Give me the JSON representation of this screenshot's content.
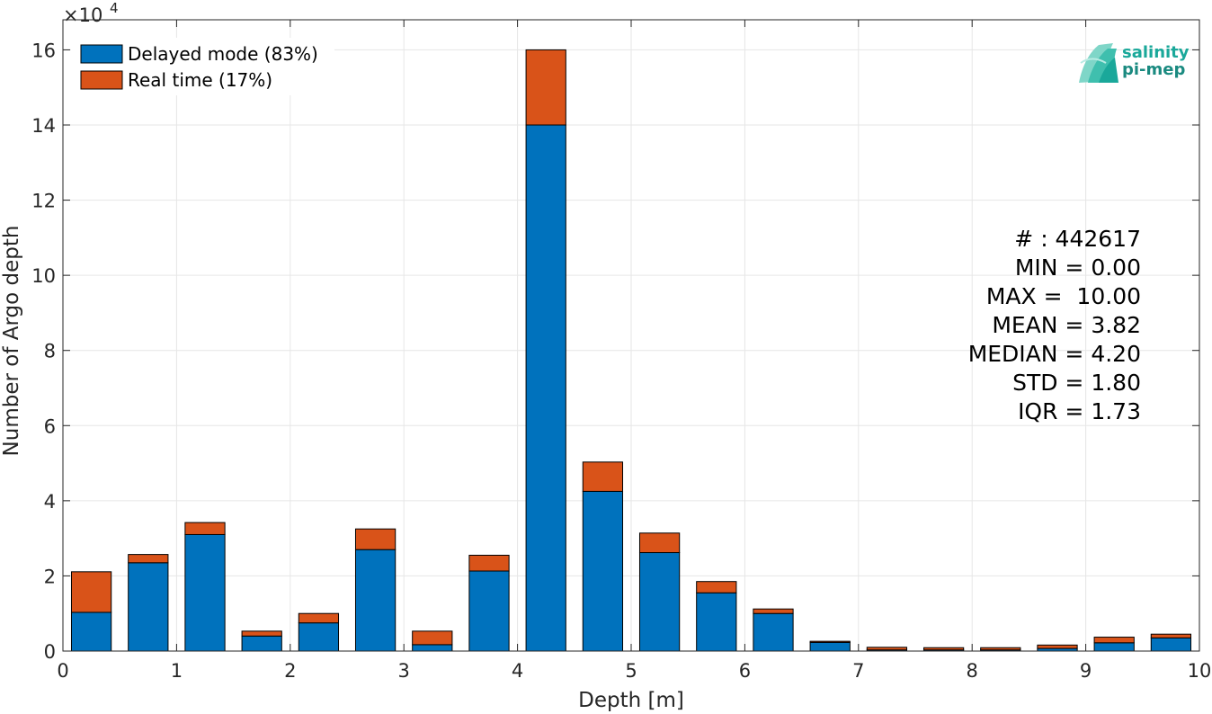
{
  "chart_data": {
    "type": "bar",
    "stacked": true,
    "xlabel": "Depth [m]",
    "ylabel": "Number of Argo depth",
    "y_multiplier_label": "×10",
    "y_multiplier_exponent": "4",
    "xlim": [
      0,
      10
    ],
    "ylim": [
      0,
      168000
    ],
    "xticks": [
      0,
      1,
      2,
      3,
      4,
      5,
      6,
      7,
      8,
      9,
      10
    ],
    "yticks": [
      0,
      20000,
      40000,
      60000,
      80000,
      100000,
      120000,
      140000,
      160000
    ],
    "ytick_labels": [
      "0",
      "2",
      "4",
      "6",
      "8",
      "10",
      "12",
      "14",
      "16"
    ],
    "grid": true,
    "bin_width": 0.5,
    "bar_width": 0.35,
    "x": [
      0.25,
      0.75,
      1.25,
      1.75,
      2.25,
      2.75,
      3.25,
      3.75,
      4.25,
      4.75,
      5.25,
      5.75,
      6.25,
      6.75,
      7.25,
      7.75,
      8.25,
      8.75,
      9.25,
      9.75
    ],
    "series": [
      {
        "name": "Delayed mode (83%)",
        "color": "#0072BD",
        "values": [
          10300,
          23500,
          31000,
          4000,
          7500,
          27000,
          1700,
          21300,
          140000,
          42500,
          26200,
          15500,
          10000,
          2300,
          300,
          300,
          300,
          700,
          2200,
          3500
        ]
      },
      {
        "name": "Real time (17%)",
        "color": "#D95319",
        "values": [
          10800,
          2200,
          3200,
          1300,
          2500,
          5500,
          3600,
          4200,
          20000,
          7800,
          5200,
          3000,
          1200,
          300,
          700,
          600,
          600,
          900,
          1500,
          1000
        ]
      }
    ],
    "legend_position": "top-left",
    "stats": [
      "# : 442617",
      "MIN = 0.00",
      "MAX =  10.00",
      "MEAN = 3.82",
      "MEDIAN = 4.20",
      "STD = 1.80",
      "IQR = 1.73"
    ]
  },
  "logo": {
    "line1": "salinity",
    "line2": "pi-mep",
    "color1": "#1aa89a",
    "color2": "#1a8a80"
  },
  "colors": {
    "axis": "#262626",
    "grid": "#e6e6e6",
    "bar_edge": "#000000"
  }
}
